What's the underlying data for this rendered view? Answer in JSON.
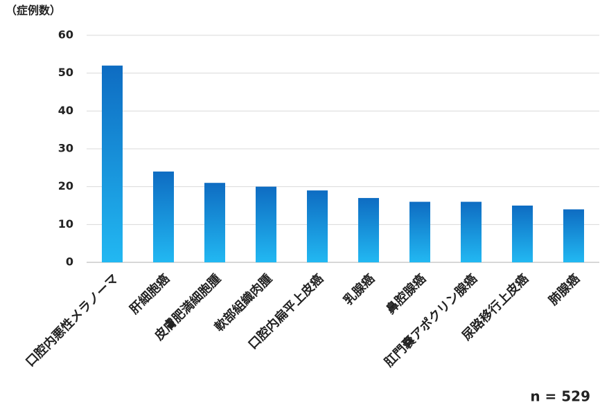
{
  "chart_data": {
    "type": "bar",
    "y_label": "（症例数）",
    "annotation": "n = 529",
    "categories": [
      "口腔内悪性メラノーマ",
      "肝細胞癌",
      "皮膚肥満細胞腫",
      "軟部組織肉腫",
      "口腔内扁平上皮癌",
      "乳腺癌",
      "鼻腔腺癌",
      "肛門嚢アポクリン腺癌",
      "尿路移行上皮癌",
      "肺腺癌"
    ],
    "values": [
      52,
      24,
      21,
      20,
      19,
      17,
      16,
      16,
      15,
      14
    ],
    "color": [
      "#0e6cc2",
      "#22b8f2"
    ],
    "ylim": [
      0,
      60
    ],
    "yticks": [
      0,
      10,
      20,
      30,
      40,
      50,
      60
    ],
    "grid": true
  }
}
